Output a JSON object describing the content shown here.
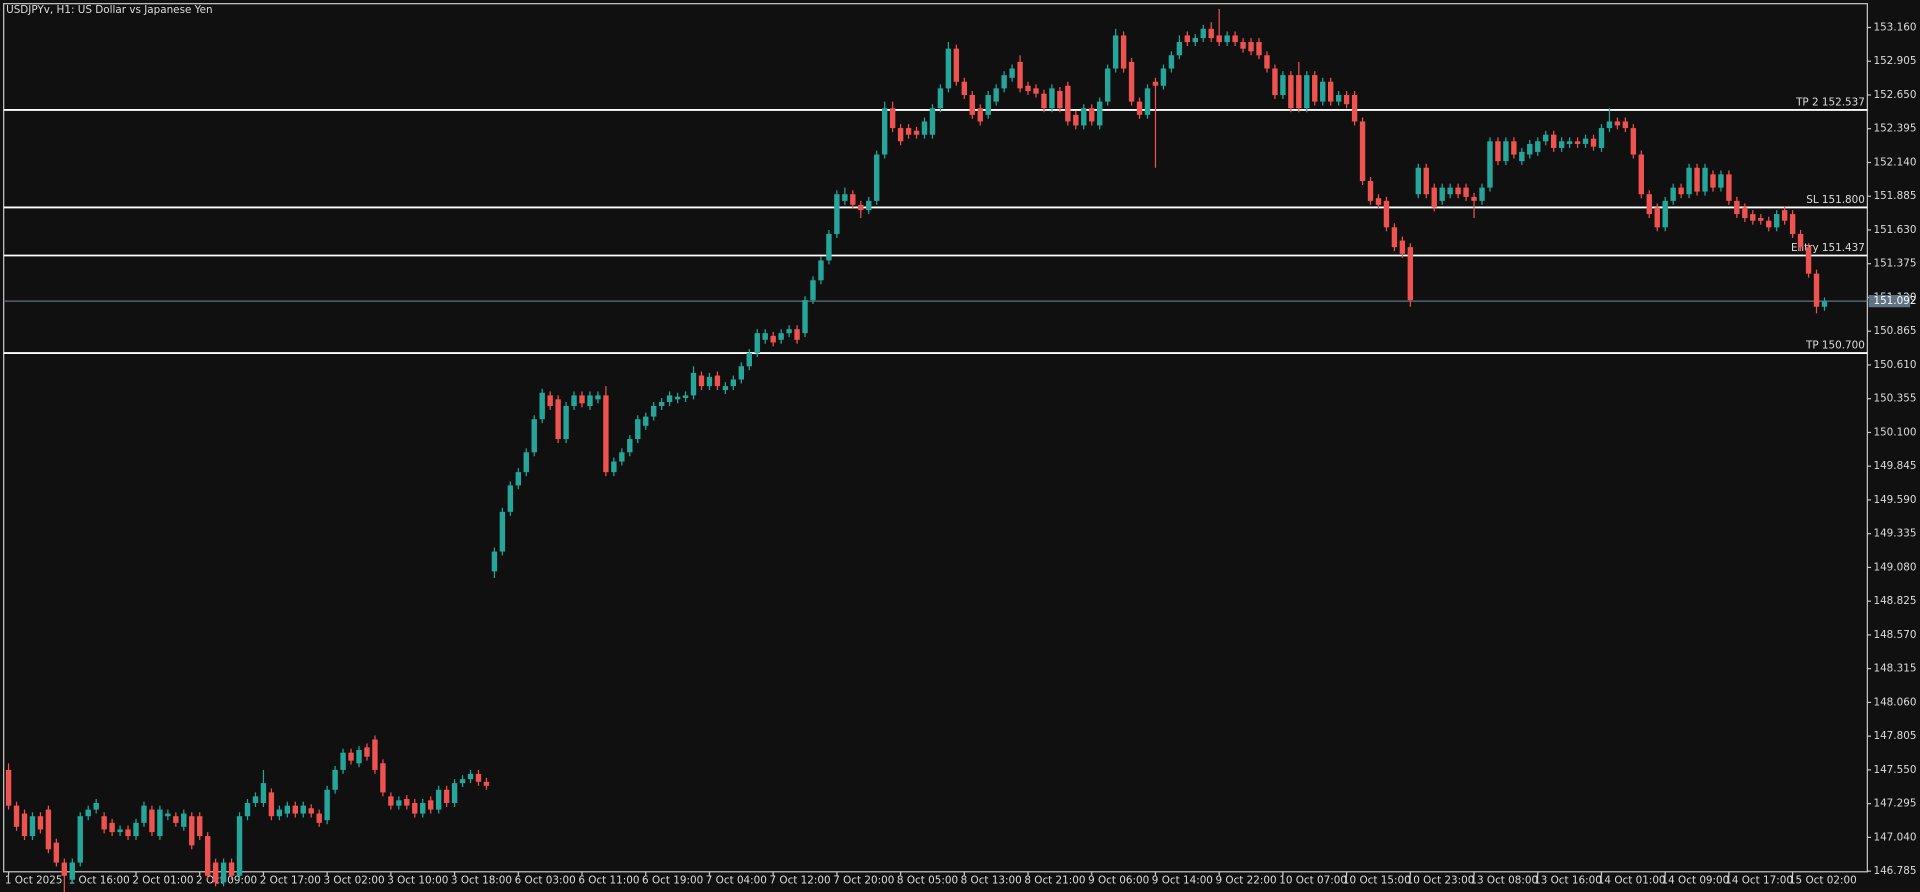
{
  "chart_data": {
    "type": "candlestick",
    "title": "USDJPYv, H1:  US Dollar vs Japanese Yen",
    "up_color": "#26a69a",
    "down_color": "#ef5350",
    "level_color": "#ffffff",
    "bid_color": "#5f7385",
    "ylim": [
      146.78,
      153.34
    ],
    "yticks": [
      {
        "value": 153.16,
        "label": "153.160"
      },
      152.905,
      {
        "value": 152.65,
        "label": "152.650"
      },
      152.395,
      {
        "value": 152.14,
        "label": "152.140"
      },
      151.885,
      {
        "value": 151.63,
        "label": "151.630"
      },
      151.375,
      {
        "value": 151.12,
        "label": "151.120"
      },
      150.865,
      {
        "value": 150.61,
        "label": "150.610"
      },
      150.355,
      {
        "value": 150.1,
        "label": "150.100"
      },
      149.845,
      {
        "value": 149.59,
        "label": "149.590"
      },
      149.335,
      {
        "value": 149.08,
        "label": "149.080"
      },
      148.825,
      {
        "value": 148.57,
        "label": "148.570"
      },
      148.315,
      {
        "value": 148.06,
        "label": "148.060"
      },
      147.805,
      {
        "value": 147.55,
        "label": "147.550"
      },
      147.295,
      {
        "value": 147.04,
        "label": "147.040"
      },
      146.785
    ],
    "levels": [
      {
        "label": "TP 2 152.537",
        "value": 152.537
      },
      {
        "label": "SL 151.800",
        "value": 151.8
      },
      {
        "label": "Entry 151.437",
        "value": 151.437
      },
      {
        "label": "TP 150.700",
        "value": 150.7
      }
    ],
    "bid": 151.092,
    "categories": [
      "1 Oct 2025",
      null,
      null,
      null,
      null,
      null,
      null,
      null,
      "1 Oct 16:00",
      null,
      null,
      null,
      null,
      null,
      null,
      null,
      "2 Oct 01:00",
      null,
      null,
      null,
      null,
      null,
      null,
      null,
      "2 Oct 09:00",
      null,
      null,
      null,
      null,
      null,
      null,
      null,
      "2 Oct 17:00",
      null,
      null,
      null,
      null,
      null,
      null,
      null,
      "3 Oct 02:00",
      null,
      null,
      null,
      null,
      null,
      null,
      null,
      "3 Oct 10:00",
      null,
      null,
      null,
      null,
      null,
      null,
      null,
      "3 Oct 18:00",
      null,
      null,
      null,
      null,
      null,
      null,
      null,
      "6 Oct 03:00",
      null,
      null,
      null,
      null,
      null,
      null,
      null,
      "6 Oct 11:00",
      null,
      null,
      null,
      null,
      null,
      null,
      null,
      "6 Oct 19:00",
      null,
      null,
      null,
      null,
      null,
      null,
      null,
      "7 Oct 04:00",
      null,
      null,
      null,
      null,
      null,
      null,
      null,
      "7 Oct 12:00",
      null,
      null,
      null,
      null,
      null,
      null,
      null,
      "7 Oct 20:00",
      null,
      null,
      null,
      null,
      null,
      null,
      null,
      "8 Oct 05:00",
      null,
      null,
      null,
      null,
      null,
      null,
      null,
      "8 Oct 13:00",
      null,
      null,
      null,
      null,
      null,
      null,
      null,
      "8 Oct 21:00",
      null,
      null,
      null,
      null,
      null,
      null,
      null,
      "9 Oct 06:00",
      null,
      null,
      null,
      null,
      null,
      null,
      null,
      "9 Oct 14:00",
      null,
      null,
      null,
      null,
      null,
      null,
      null,
      "9 Oct 22:00",
      null,
      null,
      null,
      null,
      null,
      null,
      null,
      "10 Oct 07:00",
      null,
      null,
      null,
      null,
      null,
      null,
      null,
      "10 Oct 15:00",
      null,
      null,
      null,
      null,
      null,
      null,
      null,
      "10 Oct 23:00",
      null,
      null,
      null,
      null,
      null,
      null,
      null,
      "13 Oct 08:00",
      null,
      null,
      null,
      null,
      null,
      null,
      null,
      "13 Oct 16:00",
      null,
      null,
      null,
      null,
      null,
      null,
      null,
      "14 Oct 01:00",
      null,
      null,
      null,
      null,
      null,
      null,
      null,
      "14 Oct 09:00",
      null,
      null,
      null,
      null,
      null,
      null,
      null,
      "14 Oct 17:00",
      null,
      null,
      null,
      null,
      null,
      null,
      null,
      "15 Oct 02:00",
      null,
      null,
      null,
      null
    ],
    "open": [
      147.55,
      147.28,
      147.22,
      147.05,
      147.2,
      147.25,
      147.0,
      146.85,
      146.72,
      146.85,
      147.2,
      147.25,
      147.2,
      147.15,
      147.08,
      147.1,
      147.05,
      147.15,
      147.25,
      147.05,
      147.2,
      147.2,
      147.12,
      147.2,
      147.2,
      147.05,
      146.85,
      146.7,
      146.85,
      146.75,
      147.2,
      147.3,
      147.3,
      147.38,
      147.2,
      147.22,
      147.28,
      147.22,
      147.26,
      147.22,
      147.17,
      147.4,
      147.55,
      147.68,
      147.6,
      147.72,
      147.78,
      147.6,
      147.35,
      147.28,
      147.33,
      147.3,
      147.22,
      147.32,
      147.25,
      147.4,
      147.3,
      147.45,
      147.48,
      147.52,
      147.46,
      149.05,
      149.2,
      149.5,
      149.7,
      149.8,
      149.95,
      150.2,
      150.38,
      150.35,
      150.05,
      150.3,
      150.38,
      150.3,
      150.35,
      150.38,
      149.8,
      149.88,
      149.95,
      150.05,
      150.15,
      150.22,
      150.3,
      150.33,
      150.35,
      150.36,
      150.38,
      150.53,
      150.45,
      150.53,
      150.42,
      150.45,
      150.5,
      150.6,
      150.7,
      150.8,
      150.83,
      150.8,
      150.85,
      150.88,
      150.85,
      151.1,
      151.25,
      151.4,
      151.6,
      151.85,
      151.9,
      151.82,
      151.78,
      151.85,
      152.2,
      152.55,
      152.4,
      152.4,
      152.38,
      152.35,
      152.35,
      152.55,
      152.7,
      153.0,
      152.75,
      152.65,
      152.55,
      152.5,
      152.6,
      152.7,
      152.78,
      152.9,
      152.72,
      152.7,
      152.66,
      152.55,
      152.68,
      152.72,
      152.5,
      152.42,
      152.55,
      152.42,
      152.6,
      152.85,
      153.1,
      152.9,
      152.6,
      152.5,
      152.75,
      152.72,
      152.85,
      152.95,
      153.1,
      153.05,
      153.08,
      153.15,
      153.1,
      153.05,
      153.1,
      153.05,
      153.05,
      153.05,
      152.95,
      152.85,
      152.65,
      152.8,
      152.8,
      152.55,
      152.8,
      152.6,
      152.75,
      152.6,
      152.65,
      152.65,
      152.45,
      152.0,
      151.87,
      151.85,
      151.65,
      151.55,
      151.5,
      151.9,
      152.1,
      151.95,
      151.85,
      151.9,
      151.95,
      151.95,
      151.88,
      151.85,
      151.95,
      152.3,
      152.15,
      152.3,
      152.15,
      152.2,
      152.22,
      152.3,
      152.35,
      152.25,
      152.28,
      152.3,
      152.28,
      152.32,
      152.25,
      152.4,
      152.45,
      152.45,
      152.4,
      152.2,
      151.9,
      151.8,
      151.65,
      151.85,
      151.95,
      151.9,
      152.1,
      151.92,
      152.05,
      151.95,
      152.05,
      151.85,
      151.8,
      151.75,
      151.72,
      151.7,
      151.65,
      151.78,
      151.75,
      151.6,
      151.5,
      151.3,
      151.05
    ],
    "high": [
      147.6,
      147.31,
      147.25,
      147.23,
      147.23,
      147.28,
      147.03,
      146.88,
      146.88,
      147.23,
      147.28,
      147.33,
      147.23,
      147.18,
      147.13,
      147.13,
      147.18,
      147.31,
      147.28,
      147.28,
      147.25,
      147.23,
      147.25,
      147.23,
      147.23,
      147.08,
      146.88,
      146.88,
      146.88,
      147.23,
      147.33,
      147.38,
      147.55,
      147.41,
      147.28,
      147.31,
      147.31,
      147.31,
      147.29,
      147.25,
      147.43,
      147.58,
      147.71,
      147.71,
      147.73,
      147.75,
      147.81,
      147.63,
      147.38,
      147.35,
      147.36,
      147.33,
      147.33,
      147.35,
      147.43,
      147.43,
      147.48,
      147.51,
      147.55,
      147.55,
      147.49,
      149.23,
      149.53,
      149.73,
      149.83,
      149.98,
      150.23,
      150.43,
      150.41,
      150.38,
      150.33,
      150.41,
      150.41,
      150.41,
      150.41,
      150.45,
      149.91,
      149.98,
      150.08,
      150.23,
      150.25,
      150.33,
      150.36,
      150.41,
      150.4,
      150.41,
      150.6,
      150.56,
      150.55,
      150.56,
      150.48,
      150.53,
      150.63,
      150.73,
      150.88,
      150.88,
      150.86,
      150.88,
      150.91,
      150.91,
      151.13,
      151.28,
      151.43,
      151.63,
      151.93,
      151.95,
      151.93,
      151.85,
      151.88,
      152.23,
      152.6,
      152.6,
      152.43,
      152.43,
      152.41,
      152.48,
      152.58,
      152.73,
      153.05,
      153.03,
      152.78,
      152.68,
      152.58,
      152.68,
      152.73,
      152.83,
      152.88,
      152.95,
      152.75,
      152.73,
      152.69,
      152.73,
      152.71,
      152.75,
      152.53,
      152.58,
      152.58,
      152.63,
      152.88,
      153.15,
      153.13,
      152.93,
      152.63,
      152.73,
      152.78,
      152.88,
      152.98,
      153.1,
      153.13,
      153.11,
      153.18,
      153.2,
      153.3,
      153.13,
      153.13,
      153.08,
      153.08,
      153.08,
      152.98,
      152.88,
      152.83,
      152.83,
      152.9,
      152.83,
      152.83,
      152.78,
      152.78,
      152.68,
      152.68,
      152.68,
      152.48,
      152.03,
      151.9,
      151.88,
      151.68,
      151.58,
      151.53,
      152.13,
      152.13,
      151.98,
      151.98,
      151.98,
      151.98,
      151.98,
      151.91,
      151.98,
      152.33,
      152.33,
      152.33,
      152.33,
      152.25,
      152.31,
      152.33,
      152.38,
      152.38,
      152.33,
      152.33,
      152.33,
      152.35,
      152.35,
      152.43,
      152.55,
      152.48,
      152.48,
      152.43,
      152.23,
      151.93,
      151.83,
      151.88,
      151.98,
      151.98,
      152.13,
      152.13,
      152.13,
      152.08,
      152.08,
      152.08,
      151.88,
      151.83,
      151.78,
      151.75,
      151.73,
      151.78,
      151.81,
      151.78,
      151.63,
      151.53,
      151.33,
      151.12
    ],
    "low": [
      147.25,
      147.09,
      147.02,
      147.02,
      147.07,
      146.92,
      146.82,
      146.6,
      146.69,
      146.82,
      147.17,
      147.22,
      147.07,
      147.05,
      147.05,
      147.02,
      147.02,
      147.12,
      147.05,
      147.02,
      147.17,
      147.12,
      147.09,
      146.95,
      147.02,
      146.72,
      146.67,
      146.67,
      146.72,
      146.72,
      147.17,
      147.27,
      147.27,
      147.17,
      147.17,
      147.19,
      147.19,
      147.19,
      147.19,
      147.12,
      147.14,
      147.37,
      147.52,
      147.59,
      147.57,
      147.62,
      147.52,
      147.35,
      147.25,
      147.25,
      147.25,
      147.19,
      147.19,
      147.22,
      147.22,
      147.27,
      147.27,
      147.42,
      147.45,
      147.43,
      147.4,
      149.0,
      149.17,
      149.47,
      149.67,
      149.77,
      149.92,
      150.17,
      150.27,
      150.02,
      150.02,
      150.27,
      150.29,
      150.27,
      150.32,
      149.77,
      149.77,
      149.85,
      149.92,
      150.02,
      150.12,
      150.19,
      150.27,
      150.3,
      150.32,
      150.33,
      150.35,
      150.42,
      150.42,
      150.42,
      150.39,
      150.42,
      150.47,
      150.57,
      150.67,
      150.77,
      150.75,
      150.77,
      150.82,
      150.77,
      150.82,
      151.07,
      151.22,
      151.37,
      151.57,
      151.82,
      151.79,
      151.72,
      151.75,
      151.82,
      152.17,
      152.37,
      152.27,
      152.32,
      152.32,
      152.32,
      152.32,
      152.52,
      152.67,
      152.72,
      152.62,
      152.47,
      152.42,
      152.47,
      152.57,
      152.67,
      152.75,
      152.67,
      152.65,
      152.63,
      152.52,
      152.52,
      152.52,
      152.42,
      152.39,
      152.39,
      152.42,
      152.39,
      152.57,
      152.82,
      152.82,
      152.57,
      152.47,
      152.47,
      152.1,
      152.69,
      152.82,
      152.92,
      153.02,
      153.02,
      153.05,
      153.05,
      153.02,
      153.02,
      153.02,
      152.97,
      152.95,
      152.92,
      152.82,
      152.62,
      152.62,
      152.52,
      152.52,
      152.52,
      152.57,
      152.57,
      152.57,
      152.57,
      152.55,
      152.42,
      151.97,
      151.82,
      151.79,
      151.62,
      151.47,
      151.42,
      151.05,
      151.87,
      151.87,
      151.77,
      151.82,
      151.87,
      151.87,
      151.85,
      151.72,
      151.82,
      151.92,
      152.12,
      152.12,
      152.17,
      152.12,
      152.17,
      152.19,
      152.27,
      152.22,
      152.22,
      152.25,
      152.25,
      152.25,
      152.23,
      152.22,
      152.37,
      152.39,
      152.37,
      152.17,
      151.87,
      151.72,
      151.62,
      151.62,
      151.82,
      151.87,
      151.87,
      151.89,
      151.89,
      151.92,
      151.92,
      151.82,
      151.72,
      151.69,
      151.67,
      151.67,
      151.62,
      151.62,
      151.67,
      151.57,
      151.47,
      151.27,
      151.0,
      151.02
    ],
    "close": [
      147.28,
      147.12,
      147.05,
      147.2,
      147.1,
      146.95,
      146.85,
      146.75,
      146.85,
      147.2,
      147.25,
      147.3,
      147.1,
      147.08,
      147.1,
      147.05,
      147.15,
      147.28,
      147.08,
      147.25,
      147.22,
      147.15,
      147.22,
      146.98,
      147.05,
      146.75,
      146.7,
      146.85,
      146.75,
      147.2,
      147.3,
      147.35,
      147.45,
      147.2,
      147.25,
      147.28,
      147.22,
      147.28,
      147.22,
      147.15,
      147.4,
      147.55,
      147.68,
      147.62,
      147.7,
      147.65,
      147.55,
      147.38,
      147.28,
      147.32,
      147.28,
      147.22,
      147.3,
      147.25,
      147.4,
      147.3,
      147.45,
      147.48,
      147.52,
      147.46,
      147.43,
      149.2,
      149.5,
      149.7,
      149.8,
      149.95,
      150.2,
      150.4,
      150.3,
      150.05,
      150.3,
      150.38,
      150.32,
      150.38,
      150.38,
      149.8,
      149.88,
      149.95,
      150.05,
      150.2,
      150.22,
      150.3,
      150.33,
      150.38,
      150.37,
      150.38,
      150.55,
      150.45,
      150.52,
      150.45,
      150.45,
      150.5,
      150.6,
      150.7,
      150.85,
      150.85,
      150.78,
      150.85,
      150.88,
      150.8,
      151.1,
      151.25,
      151.4,
      151.6,
      151.9,
      151.9,
      151.82,
      151.78,
      151.85,
      152.2,
      152.55,
      152.4,
      152.3,
      152.35,
      152.35,
      152.45,
      152.55,
      152.7,
      153.0,
      152.75,
      152.65,
      152.5,
      152.45,
      152.65,
      152.7,
      152.8,
      152.85,
      152.7,
      152.68,
      152.66,
      152.55,
      152.7,
      152.55,
      152.45,
      152.42,
      152.55,
      152.45,
      152.6,
      152.85,
      153.1,
      152.85,
      152.6,
      152.5,
      152.7,
      152.72,
      152.85,
      152.95,
      153.05,
      153.05,
      153.08,
      153.15,
      153.08,
      153.05,
      153.1,
      153.05,
      153.0,
      152.98,
      152.95,
      152.85,
      152.65,
      152.8,
      152.55,
      152.55,
      152.8,
      152.6,
      152.75,
      152.6,
      152.65,
      152.58,
      152.45,
      152.0,
      151.85,
      151.82,
      151.65,
      151.5,
      151.45,
      151.1,
      152.1,
      151.9,
      151.8,
      151.95,
      151.95,
      151.9,
      151.88,
      151.85,
      151.95,
      152.3,
      152.15,
      152.3,
      152.2,
      152.22,
      152.28,
      152.3,
      152.35,
      152.25,
      152.3,
      152.3,
      152.28,
      152.32,
      152.26,
      152.4,
      152.45,
      152.42,
      152.4,
      152.2,
      151.9,
      151.75,
      151.65,
      151.85,
      151.95,
      151.9,
      152.1,
      151.92,
      152.1,
      151.95,
      152.05,
      151.85,
      151.75,
      151.72,
      151.7,
      151.7,
      151.65,
      151.75,
      151.7,
      151.6,
      151.5,
      151.3,
      151.05,
      151.09
    ]
  }
}
